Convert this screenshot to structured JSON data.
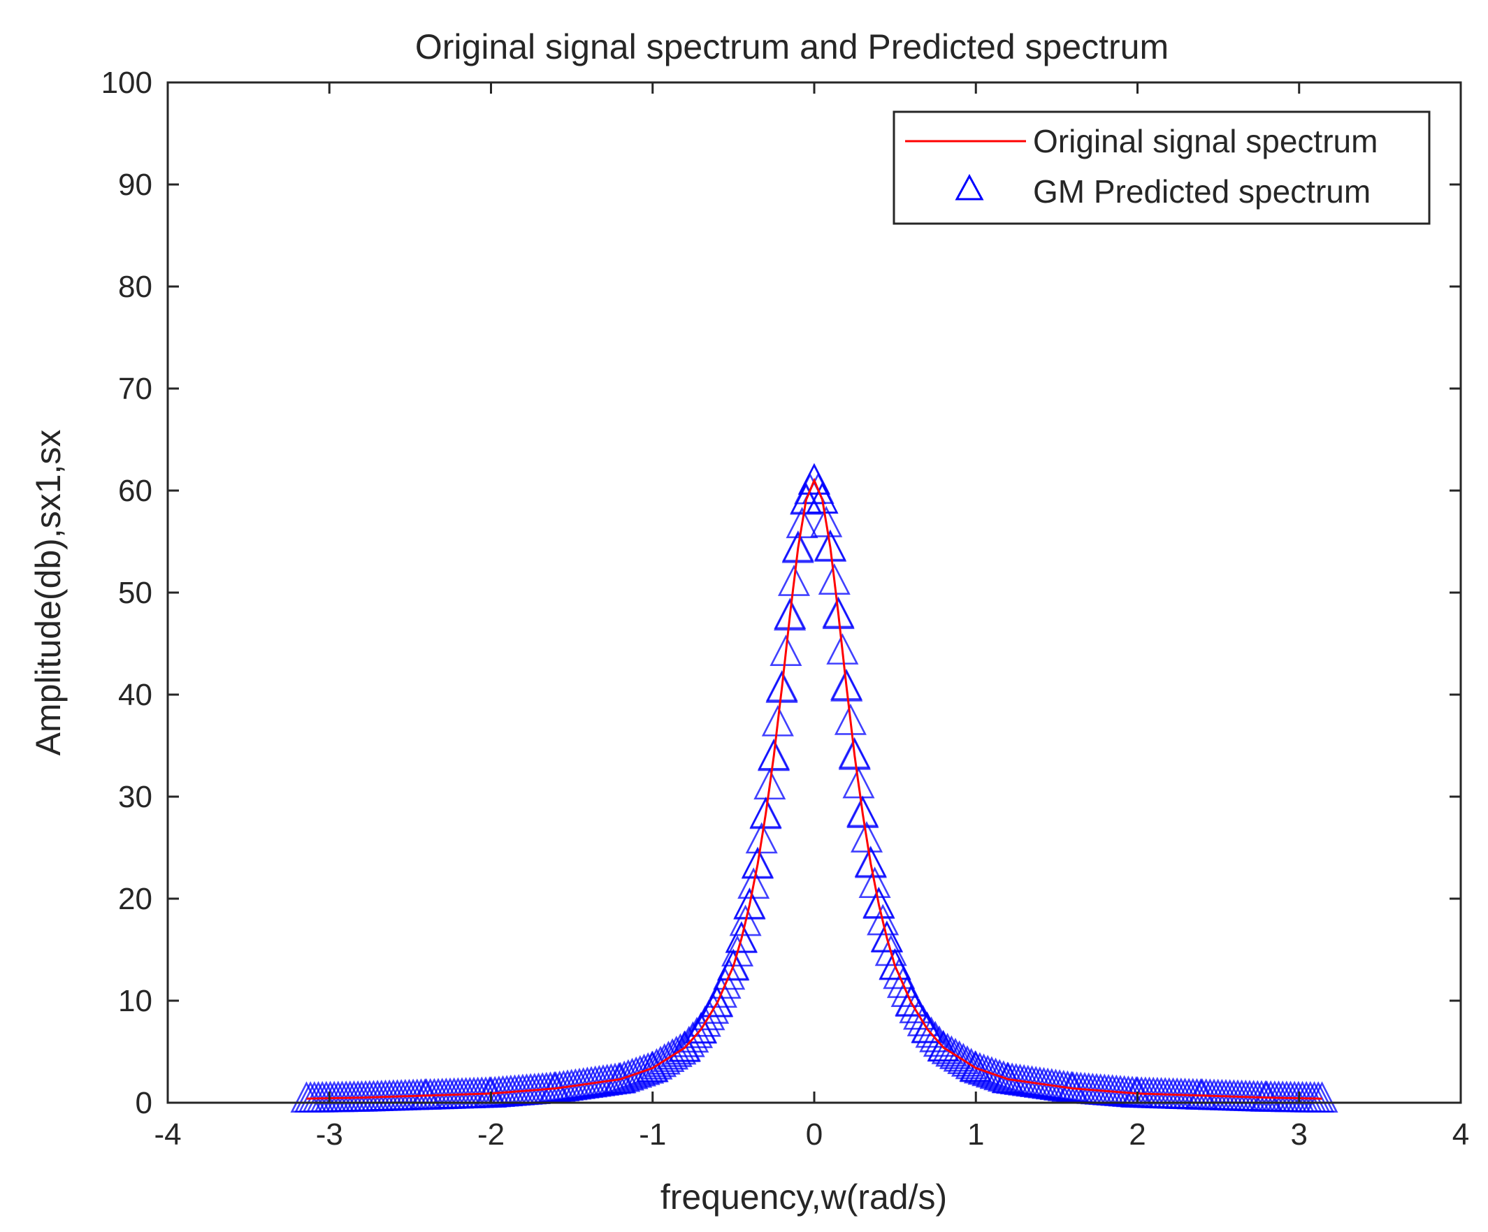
{
  "chart_data": {
    "type": "line",
    "title": "Original signal spectrum and Predicted spectrum",
    "xlabel": "frequency,w(rad/s)",
    "ylabel": "Amplitude(db),sx1,sx",
    "xlim": [
      -4,
      4
    ],
    "ylim": [
      0,
      100
    ],
    "xticks": [
      "-4",
      "-3",
      "-2",
      "-1",
      "0",
      "1",
      "2",
      "3",
      "4"
    ],
    "yticks": [
      "0",
      "10",
      "20",
      "30",
      "40",
      "50",
      "60",
      "70",
      "80",
      "90",
      "100"
    ],
    "grid": false,
    "legend_position": "top-right",
    "x": [
      -3.1416,
      -2.8,
      -2.4,
      -2.0,
      -1.6,
      -1.2,
      -1.0,
      -0.8,
      -0.7,
      -0.6,
      -0.5,
      -0.45,
      -0.4,
      -0.35,
      -0.3,
      -0.25,
      -0.2,
      -0.15,
      -0.1,
      -0.05,
      0.0,
      0.05,
      0.1,
      0.15,
      0.2,
      0.25,
      0.3,
      0.35,
      0.4,
      0.45,
      0.5,
      0.6,
      0.7,
      0.8,
      1.0,
      1.2,
      1.6,
      2.0,
      2.4,
      2.8,
      3.1416
    ],
    "series": [
      {
        "name": "Original signal spectrum",
        "style": "line",
        "color": "#ff0000",
        "values": [
          0.4,
          0.5,
          0.7,
          0.9,
          1.4,
          2.3,
          3.4,
          5.4,
          7.2,
          9.8,
          13.4,
          16.1,
          19.4,
          23.4,
          28.3,
          34.0,
          40.7,
          47.8,
          54.4,
          59.1,
          61.0,
          59.1,
          54.4,
          47.8,
          40.7,
          34.0,
          28.3,
          23.4,
          19.4,
          16.1,
          13.4,
          9.8,
          7.2,
          5.4,
          3.4,
          2.3,
          1.4,
          0.9,
          0.7,
          0.5,
          0.4
        ]
      },
      {
        "name": "GM Predicted spectrum",
        "style": "marker-triangle",
        "color": "#0000ff",
        "values": [
          0.4,
          0.5,
          0.7,
          0.9,
          1.4,
          2.3,
          3.4,
          5.4,
          7.2,
          9.8,
          13.4,
          16.1,
          19.4,
          23.4,
          28.3,
          34.0,
          40.7,
          47.8,
          54.4,
          59.1,
          61.0,
          59.1,
          54.4,
          47.8,
          40.7,
          34.0,
          28.3,
          23.4,
          19.4,
          16.1,
          13.4,
          9.8,
          7.2,
          5.4,
          3.4,
          2.3,
          1.4,
          0.9,
          0.7,
          0.5,
          0.4
        ]
      }
    ]
  },
  "colors": {
    "axis": "#262626",
    "line": "#ff0000",
    "marker": "#0000ff",
    "background": "#ffffff"
  }
}
